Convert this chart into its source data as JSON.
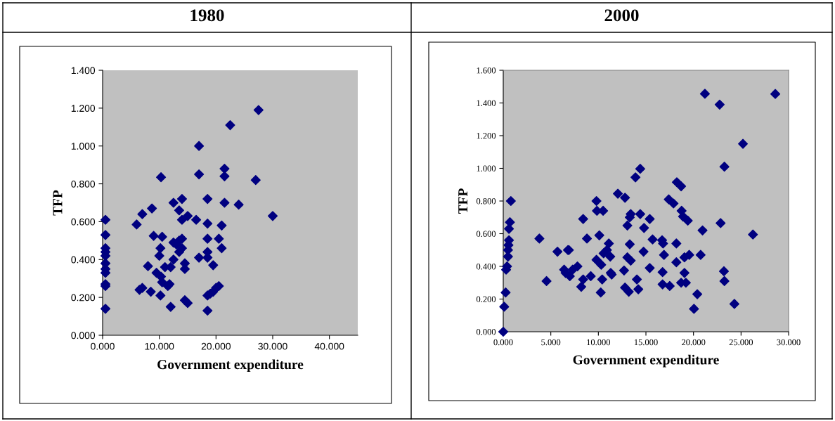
{
  "chart_data": [
    {
      "type": "scatter",
      "title": "1980",
      "xlabel": "Government expenditure",
      "ylabel": "TFP",
      "color": "#000080",
      "marker": "diamond",
      "x": [
        0.5,
        0.5,
        0.5,
        0.5,
        0.5,
        0.5,
        0.5,
        0.5,
        0.5,
        0.5,
        0.5,
        6.0,
        7.0,
        8.7,
        6.5,
        7.0,
        8.5,
        8.0,
        9.0,
        9.5,
        10.3,
        10.5,
        10.2,
        10.0,
        10.3,
        10.2,
        10.5,
        11.0,
        11.5,
        11.8,
        12.0,
        12.0,
        12.5,
        12.5,
        12.5,
        13.0,
        13.5,
        13.5,
        14.0,
        14.0,
        14.0,
        13.5,
        14.5,
        14.5,
        14.5,
        15.0,
        15.0,
        14.0,
        16.5,
        17.0,
        17.0,
        17.0,
        18.5,
        18.5,
        18.5,
        18.5,
        18.5,
        18.5,
        18.5,
        19.0,
        19.5,
        19.5,
        20.0,
        20.5,
        20.5,
        21.0,
        21.0,
        21.5,
        21.5,
        21.5,
        22.5,
        24.0,
        27.0,
        27.5,
        30.0
      ],
      "values": [
        0.14,
        0.26,
        0.27,
        0.33,
        0.35,
        0.38,
        0.42,
        0.44,
        0.46,
        0.53,
        0.61,
        0.585,
        0.64,
        0.67,
        0.24,
        0.25,
        0.23,
        0.365,
        0.525,
        0.33,
        0.835,
        0.52,
        0.46,
        0.42,
        0.31,
        0.21,
        0.28,
        0.36,
        0.26,
        0.27,
        0.15,
        0.36,
        0.7,
        0.49,
        0.4,
        0.48,
        0.44,
        0.66,
        0.72,
        0.61,
        0.51,
        0.5,
        0.38,
        0.35,
        0.185,
        0.17,
        0.63,
        0.46,
        0.61,
        0.41,
        1.0,
        0.85,
        0.72,
        0.59,
        0.51,
        0.41,
        0.44,
        0.21,
        0.13,
        0.22,
        0.23,
        0.37,
        0.25,
        0.26,
        0.51,
        0.58,
        0.46,
        0.88,
        0.84,
        0.7,
        1.11,
        0.69,
        0.82,
        1.19,
        0.63
      ],
      "xlim": [
        0,
        45
      ],
      "xticks": [
        {
          "value": 0,
          "label": "0.000"
        },
        {
          "value": 10,
          "label": "10.000"
        },
        {
          "value": 20,
          "label": "20.000"
        },
        {
          "value": 30,
          "label": "30.000"
        },
        {
          "value": 40,
          "label": "40.000"
        }
      ],
      "ylim": [
        0,
        1.4
      ],
      "yticks": [
        {
          "value": 0,
          "label": "0.000"
        },
        {
          "value": 0.2,
          "label": "0.200"
        },
        {
          "value": 0.4,
          "label": "0.400"
        },
        {
          "value": 0.6,
          "label": "0.600"
        },
        {
          "value": 0.8,
          "label": "0.800"
        },
        {
          "value": 1.0,
          "label": "1.000"
        },
        {
          "value": 1.2,
          "label": "1.200"
        },
        {
          "value": 1.4,
          "label": "1.400"
        }
      ]
    },
    {
      "type": "scatter",
      "title": "2000",
      "xlabel": "Government expenditure",
      "ylabel": "TFP",
      "color": "#000080",
      "marker": "diamond",
      "x": [
        0,
        0.1,
        0.25,
        0.3,
        0.4,
        0.5,
        0.5,
        0.55,
        0.6,
        0.6,
        0.7,
        0.8,
        3.8,
        4.55,
        5.7,
        6.8,
        6.9,
        6.4,
        6.55,
        7.0,
        7.3,
        7.8,
        8.2,
        8.4,
        8.4,
        8.8,
        9.2,
        9.8,
        9.85,
        9.8,
        10.1,
        10.25,
        10.3,
        10.4,
        10.5,
        10.55,
        10.9,
        11.1,
        11.25,
        11.3,
        11.4,
        12.05,
        12.8,
        12.7,
        12.8,
        13.2,
        13.05,
        13.3,
        13.4,
        13.3,
        13.05,
        13.4,
        13.9,
        14.4,
        14.05,
        14.2,
        14.4,
        14.8,
        14.75,
        15.4,
        15.7,
        15.4,
        16.7,
        16.8,
        16.9,
        16.75,
        16.75,
        17.5,
        17.4,
        17.9,
        18.2,
        18.2,
        18.25,
        18.7,
        18.75,
        18.9,
        19.4,
        19.05,
        19.55,
        19.05,
        18.7,
        19.2,
        20.05,
        20.4,
        20.75,
        20.95,
        21.2,
        22.75,
        22.85,
        23.25,
        23.2,
        23.25,
        24.3,
        25.2,
        26.25,
        28.6
      ],
      "values": [
        0,
        0.153,
        0.24,
        0.38,
        0.4,
        0.46,
        0.5,
        0.53,
        0.56,
        0.63,
        0.67,
        0.8,
        0.57,
        0.31,
        0.49,
        0.5,
        0.5,
        0.38,
        0.36,
        0.34,
        0.38,
        0.4,
        0.275,
        0.32,
        0.69,
        0.57,
        0.34,
        0.8,
        0.74,
        0.44,
        0.59,
        0.24,
        0.41,
        0.32,
        0.74,
        0.48,
        0.5,
        0.54,
        0.46,
        0.36,
        0.35,
        0.845,
        0.82,
        0.375,
        0.27,
        0.245,
        0.65,
        0.7,
        0.72,
        0.535,
        0.455,
        0.435,
        0.945,
        0.997,
        0.32,
        0.26,
        0.72,
        0.635,
        0.49,
        0.69,
        0.565,
        0.39,
        0.56,
        0.54,
        0.47,
        0.365,
        0.29,
        0.28,
        0.81,
        0.785,
        0.54,
        0.425,
        0.915,
        0.89,
        0.74,
        0.705,
        0.68,
        0.455,
        0.47,
        0.36,
        0.3,
        0.3,
        0.14,
        0.23,
        0.47,
        0.62,
        1.456,
        1.39,
        0.665,
        1.01,
        0.37,
        0.31,
        0.17,
        1.15,
        0.595,
        1.455
      ],
      "xlim": [
        0,
        30
      ],
      "xticks": [
        {
          "value": 0,
          "label": "0.000"
        },
        {
          "value": 5,
          "label": "5.000"
        },
        {
          "value": 10,
          "label": "10.000"
        },
        {
          "value": 15,
          "label": "15.000"
        },
        {
          "value": 20,
          "label": "20.000"
        },
        {
          "value": 25,
          "label": "25.000"
        },
        {
          "value": 30,
          "label": "30.000"
        }
      ],
      "ylim": [
        0,
        1.6
      ],
      "yticks": [
        {
          "value": 0,
          "label": "0.000"
        },
        {
          "value": 0.2,
          "label": "0.200"
        },
        {
          "value": 0.4,
          "label": "0.400"
        },
        {
          "value": 0.6,
          "label": "0.600"
        },
        {
          "value": 0.8,
          "label": "0.800"
        },
        {
          "value": 1.0,
          "label": "1.000"
        },
        {
          "value": 1.2,
          "label": "1.200"
        },
        {
          "value": 1.4,
          "label": "1.400"
        },
        {
          "value": 1.6,
          "label": "1.600"
        }
      ]
    }
  ]
}
